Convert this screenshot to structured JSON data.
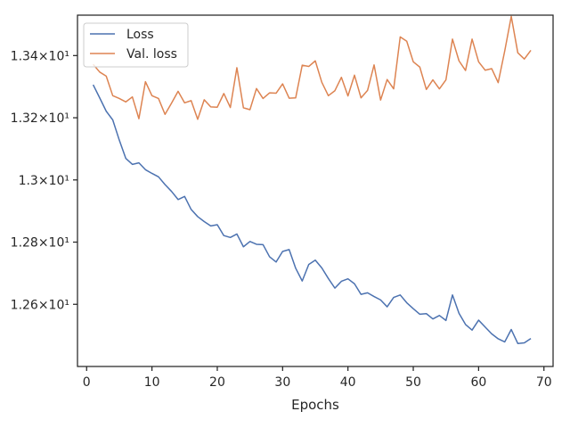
{
  "chart_data": {
    "type": "line",
    "title": "",
    "xlabel": "Epochs",
    "ylabel": "",
    "xlim": [
      -1.4,
      71.4
    ],
    "ylim": [
      12.4,
      13.53
    ],
    "xticks": [
      0,
      10,
      20,
      30,
      40,
      50,
      60,
      70
    ],
    "xtick_labels": [
      "0",
      "10",
      "20",
      "30",
      "40",
      "50",
      "60",
      "70"
    ],
    "yticks": [
      12.6,
      12.8,
      13.0,
      13.2,
      13.4
    ],
    "ytick_labels": [
      "1.26×10¹",
      "1.28×10¹",
      "1.3×10¹",
      "1.32×10¹",
      "1.34×10¹"
    ],
    "grid": false,
    "legend_position": "upper-left",
    "colors": {
      "loss": "#4c72b0",
      "val_loss": "#dd8452",
      "axes": "#262626"
    },
    "series": [
      {
        "name": "Loss",
        "x": [
          1,
          2,
          3,
          4,
          5,
          6,
          7,
          8,
          9,
          10,
          11,
          12,
          13,
          14,
          15,
          16,
          17,
          18,
          19,
          20,
          21,
          22,
          23,
          24,
          25,
          26,
          27,
          28,
          29,
          30,
          31,
          32,
          33,
          34,
          35,
          36,
          37,
          38,
          39,
          40,
          41,
          42,
          43,
          44,
          45,
          46,
          47,
          48,
          49,
          50,
          51,
          52,
          53,
          54,
          55,
          56,
          57,
          58,
          59,
          60,
          61,
          62,
          63,
          64,
          65,
          66,
          67,
          68
        ],
        "values": [
          13.306,
          13.264,
          13.221,
          13.193,
          13.128,
          13.069,
          13.05,
          13.055,
          13.033,
          13.021,
          13.01,
          12.985,
          12.963,
          12.937,
          12.947,
          12.905,
          12.882,
          12.866,
          12.852,
          12.856,
          12.821,
          12.815,
          12.826,
          12.785,
          12.802,
          12.793,
          12.792,
          12.753,
          12.736,
          12.77,
          12.776,
          12.716,
          12.675,
          12.728,
          12.742,
          12.717,
          12.683,
          12.652,
          12.674,
          12.682,
          12.666,
          12.632,
          12.637,
          12.625,
          12.614,
          12.592,
          12.622,
          12.63,
          12.605,
          12.586,
          12.568,
          12.57,
          12.553,
          12.564,
          12.548,
          12.63,
          12.571,
          12.535,
          12.517,
          12.549,
          12.527,
          12.505,
          12.489,
          12.479,
          12.519,
          12.474,
          12.476,
          12.49
        ]
      },
      {
        "name": "Val. loss",
        "x": [
          1,
          2,
          3,
          4,
          5,
          6,
          7,
          8,
          9,
          10,
          11,
          12,
          13,
          14,
          15,
          16,
          17,
          18,
          19,
          20,
          21,
          22,
          23,
          24,
          25,
          26,
          27,
          28,
          29,
          30,
          31,
          32,
          33,
          34,
          35,
          36,
          37,
          38,
          39,
          40,
          41,
          42,
          43,
          44,
          45,
          46,
          47,
          48,
          49,
          50,
          51,
          52,
          53,
          54,
          55,
          56,
          57,
          58,
          59,
          60,
          61,
          62,
          63,
          64,
          65,
          66,
          67,
          68
        ],
        "values": [
          13.372,
          13.347,
          13.334,
          13.271,
          13.262,
          13.251,
          13.267,
          13.197,
          13.316,
          13.271,
          13.262,
          13.211,
          13.247,
          13.285,
          13.248,
          13.255,
          13.195,
          13.258,
          13.235,
          13.234,
          13.278,
          13.233,
          13.361,
          13.232,
          13.226,
          13.294,
          13.262,
          13.28,
          13.279,
          13.309,
          13.263,
          13.264,
          13.369,
          13.365,
          13.383,
          13.314,
          13.271,
          13.287,
          13.33,
          13.27,
          13.337,
          13.264,
          13.288,
          13.37,
          13.257,
          13.323,
          13.293,
          13.46,
          13.446,
          13.38,
          13.363,
          13.291,
          13.322,
          13.293,
          13.322,
          13.453,
          13.383,
          13.352,
          13.453,
          13.38,
          13.353,
          13.358,
          13.313,
          13.415,
          13.526,
          13.409,
          13.389,
          13.417
        ]
      }
    ]
  }
}
